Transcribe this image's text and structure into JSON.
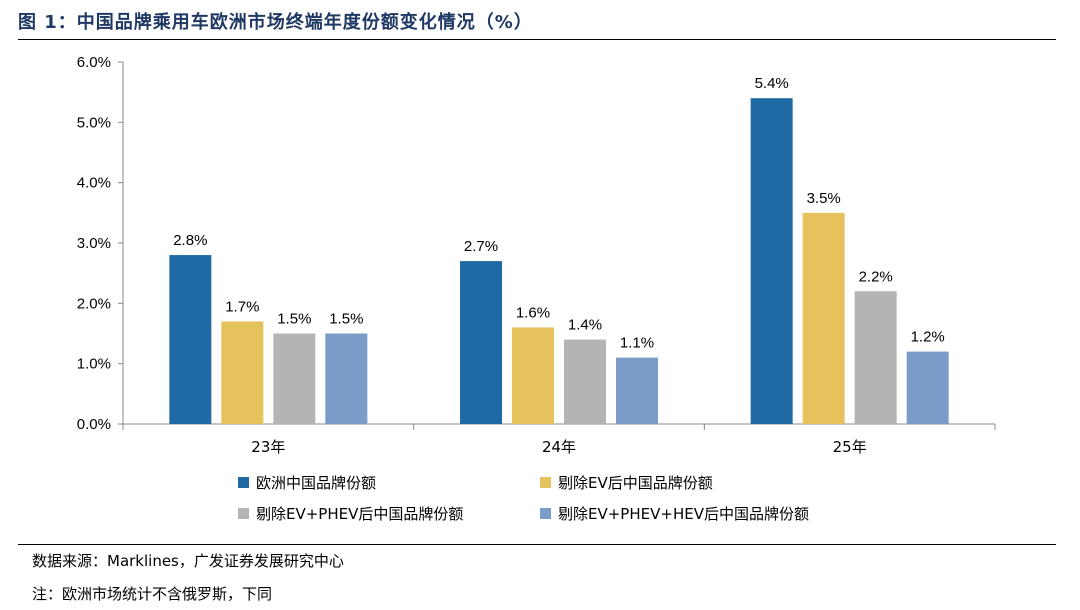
{
  "figure": {
    "title": "图 1：中国品牌乘用车欧洲市场终端年度份额变化情况（%）",
    "source": "数据来源：Marklines，广发证券发展研究中心",
    "note": "注：欧洲市场统计不含俄罗斯，下同"
  },
  "chart_data": {
    "type": "bar",
    "categories": [
      "23年",
      "24年",
      "25年"
    ],
    "series": [
      {
        "name": "欧洲中国品牌份额",
        "color": "#1f6aa5",
        "values": [
          2.8,
          2.7,
          5.4
        ],
        "labels": [
          "2.8%",
          "2.7%",
          "5.4%"
        ]
      },
      {
        "name": "剔除EV后中国品牌份额",
        "color": "#e6c25c",
        "values": [
          1.7,
          1.6,
          3.5
        ],
        "labels": [
          "1.7%",
          "1.6%",
          "3.5%"
        ]
      },
      {
        "name": "剔除EV+PHEV后中国品牌份额",
        "color": "#b4b4b4",
        "values": [
          1.5,
          1.4,
          2.2
        ],
        "labels": [
          "1.5%",
          "1.4%",
          "2.2%"
        ]
      },
      {
        "name": "剔除EV+PHEV+HEV后中国品牌份额",
        "color": "#7b9cc9",
        "values": [
          1.5,
          1.1,
          1.2
        ],
        "labels": [
          "1.5%",
          "1.1%",
          "1.2%"
        ]
      }
    ],
    "ylim": [
      0,
      6
    ],
    "yticks": [
      "0.0%",
      "1.0%",
      "2.0%",
      "3.0%",
      "4.0%",
      "5.0%",
      "6.0%"
    ],
    "legend_position": "bottom",
    "grid": false
  }
}
